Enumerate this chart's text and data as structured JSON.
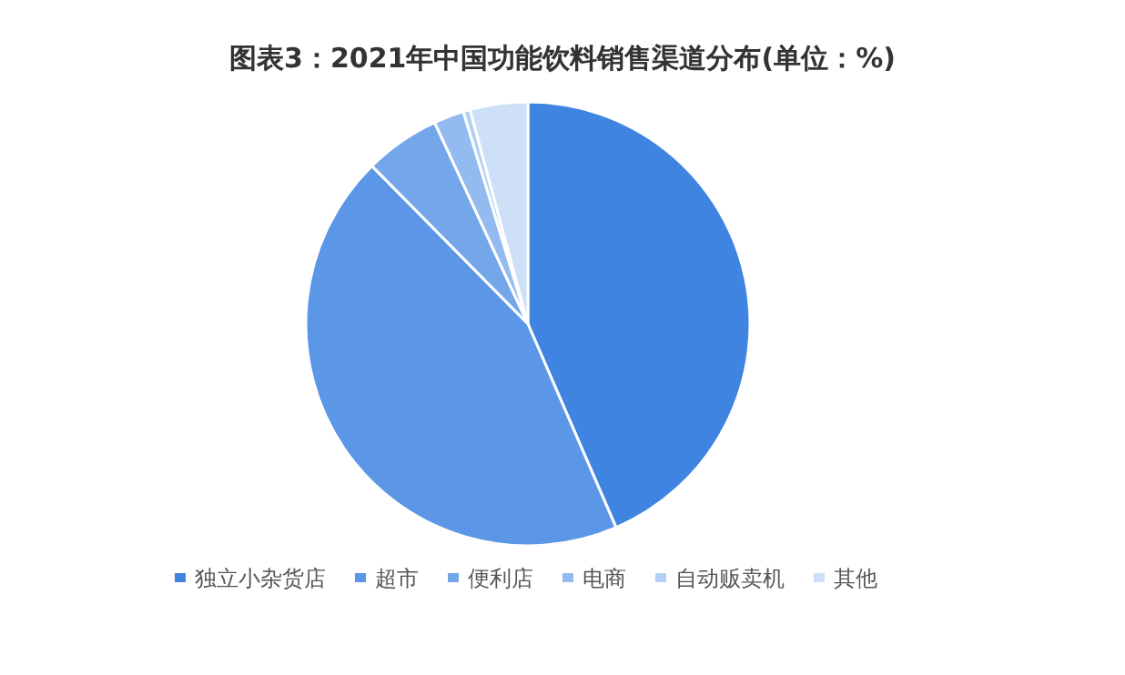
{
  "chart_data": {
    "type": "pie",
    "title": "图表3：2021年中国功能饮料销售渠道分布(单位：%)",
    "categories": [
      "独立小杂货店",
      "超市",
      "便利店",
      "电商",
      "自动贩卖机",
      "其他"
    ],
    "values": [
      43.5,
      44.1,
      5.5,
      2.2,
      0.5,
      4.2
    ],
    "colors": [
      "#3f84e0",
      "#5b97e6",
      "#74a7ea",
      "#93bbef",
      "#b3cff4",
      "#cde0f8"
    ],
    "legend": "bottom"
  }
}
